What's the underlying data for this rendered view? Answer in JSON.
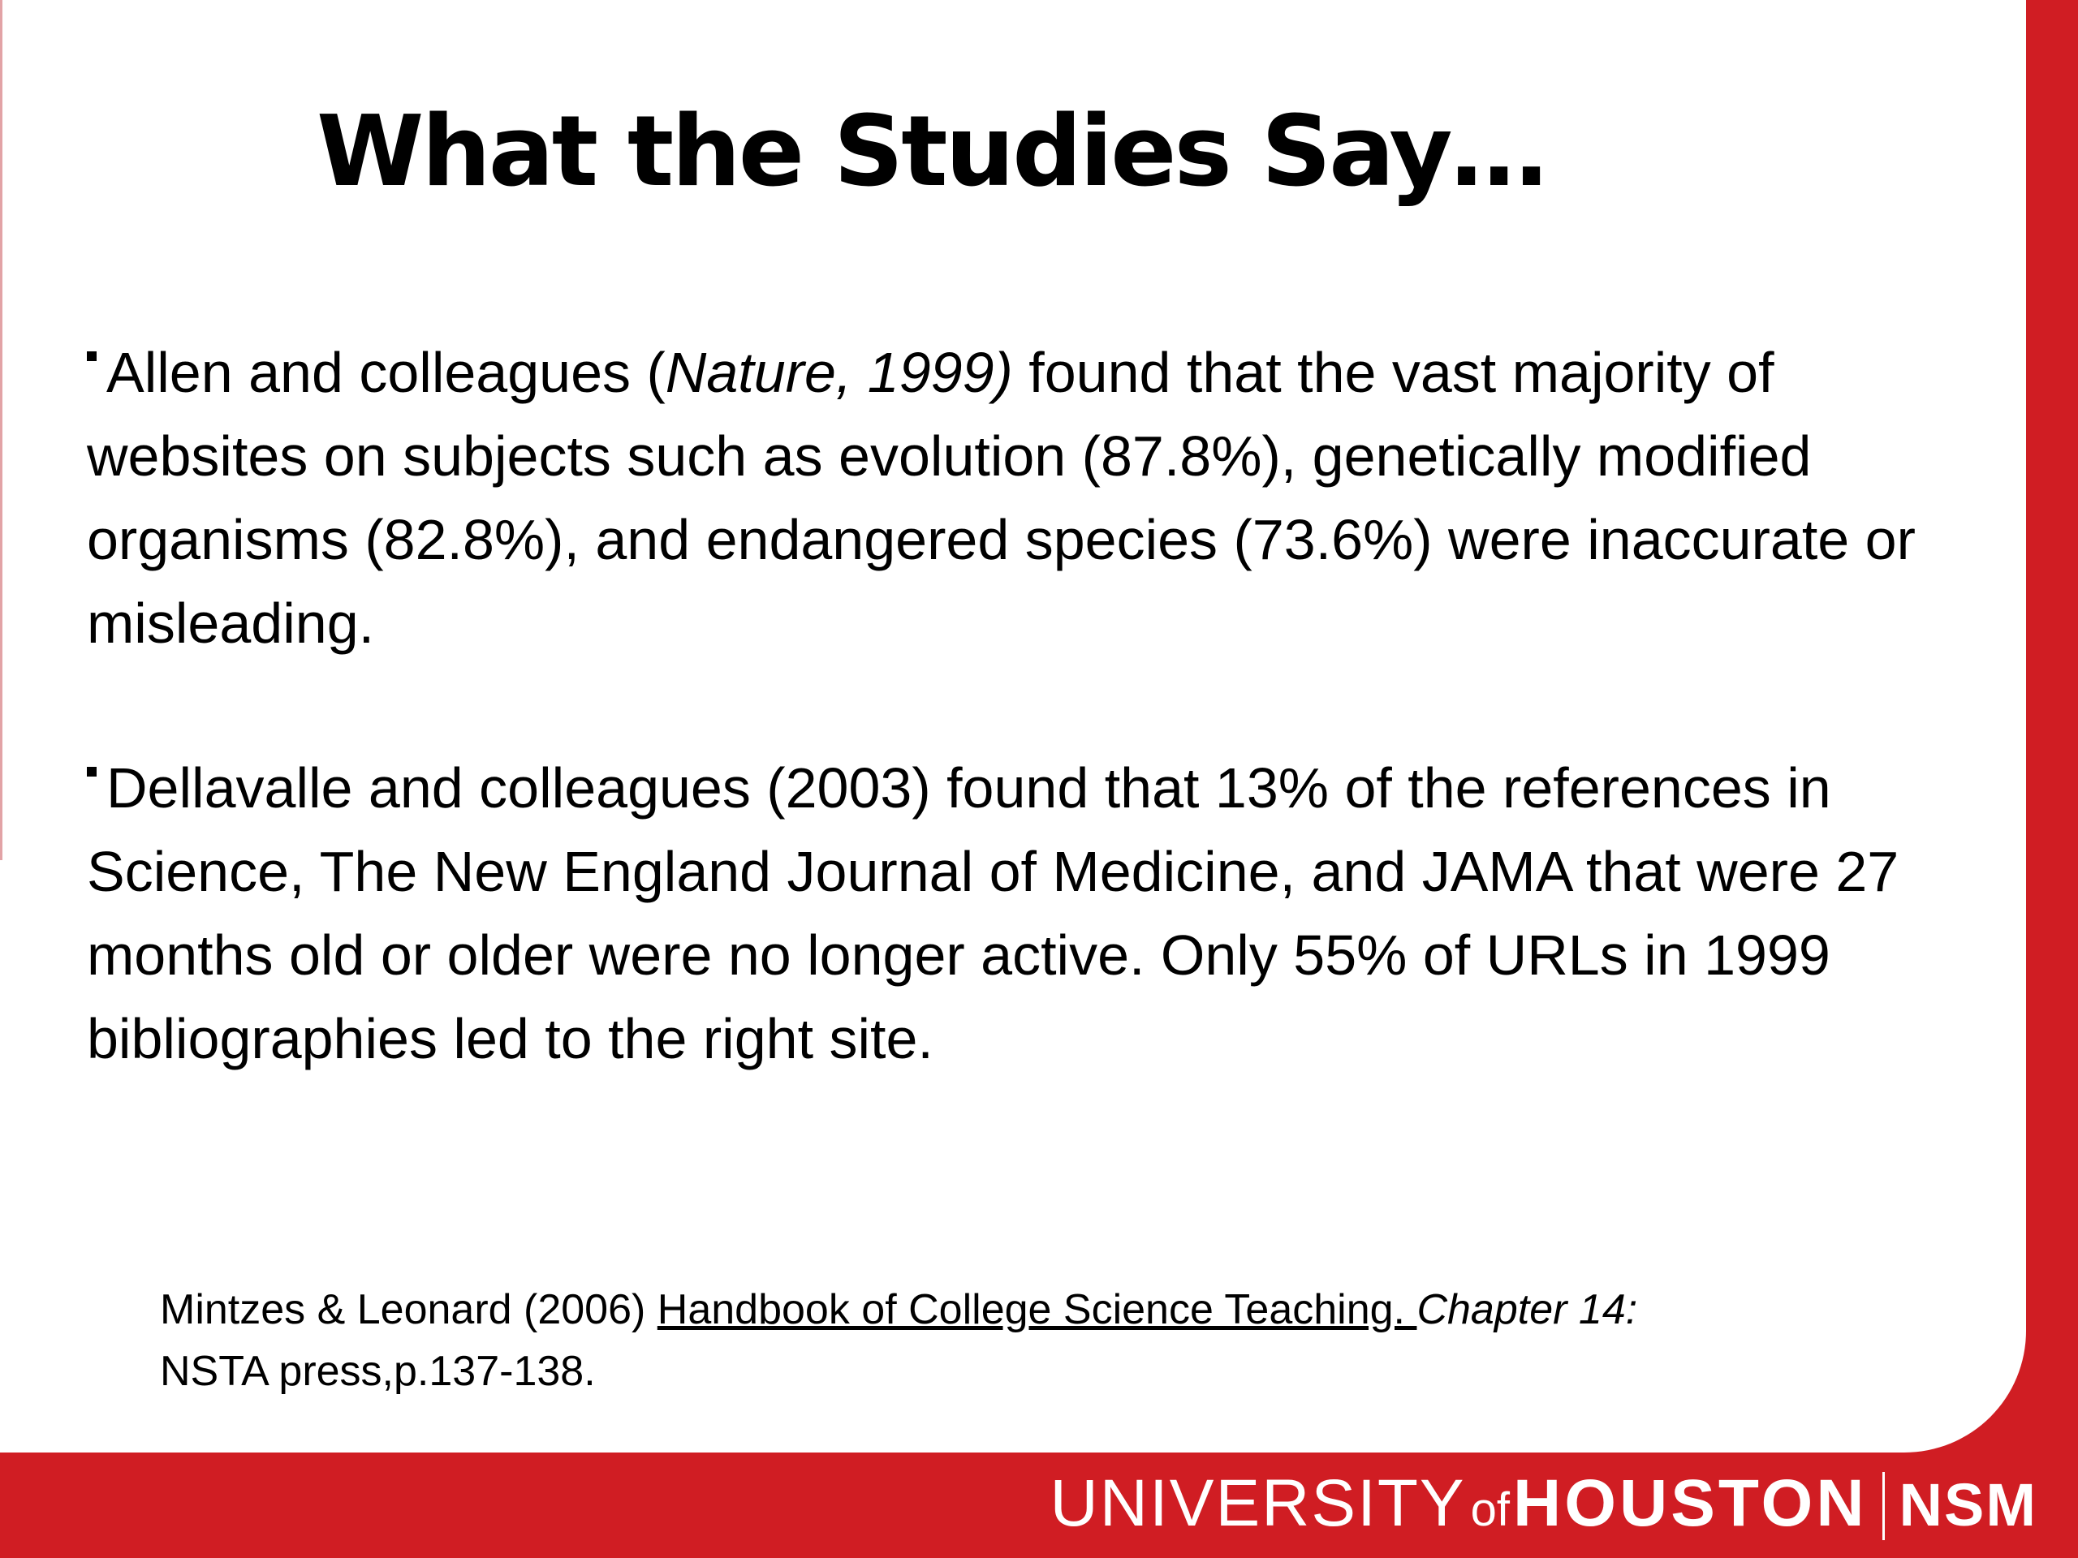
{
  "slide": {
    "title": "What the Studies Say…",
    "bullets": [
      {
        "text_before_italic": "Allen and colleagues (",
        "italic": "Nature, 1999)",
        "text_after_italic": " found that the vast majority of websites on subjects such as evolution (87.8%), genetically modified organisms (82.8%), and endangered species (73.6%) were inaccurate or misleading."
      },
      {
        "text": "Dellavalle and colleagues (2003) found that 13% of the references in Science, The New England Journal of Medicine, and JAMA that were 27 months old or older were no longer active.  Only 55% of URLs in 1999 bibliographies led to the right site."
      }
    ],
    "citation": {
      "authors": "Mintzes & Leonard (2006) ",
      "book_title": "Handbook of College Science Teaching. ",
      "chapter": "Chapter 14:",
      "publisher": "NSTA press,p.137-138."
    }
  },
  "footer": {
    "logo_university": "UNIVERSITY",
    "logo_of": "of",
    "logo_houston": "HOUSTON",
    "logo_nsm": "NSM"
  },
  "colors": {
    "brand_red": "#d01d23",
    "background": "#ffffff",
    "text": "#000000"
  }
}
